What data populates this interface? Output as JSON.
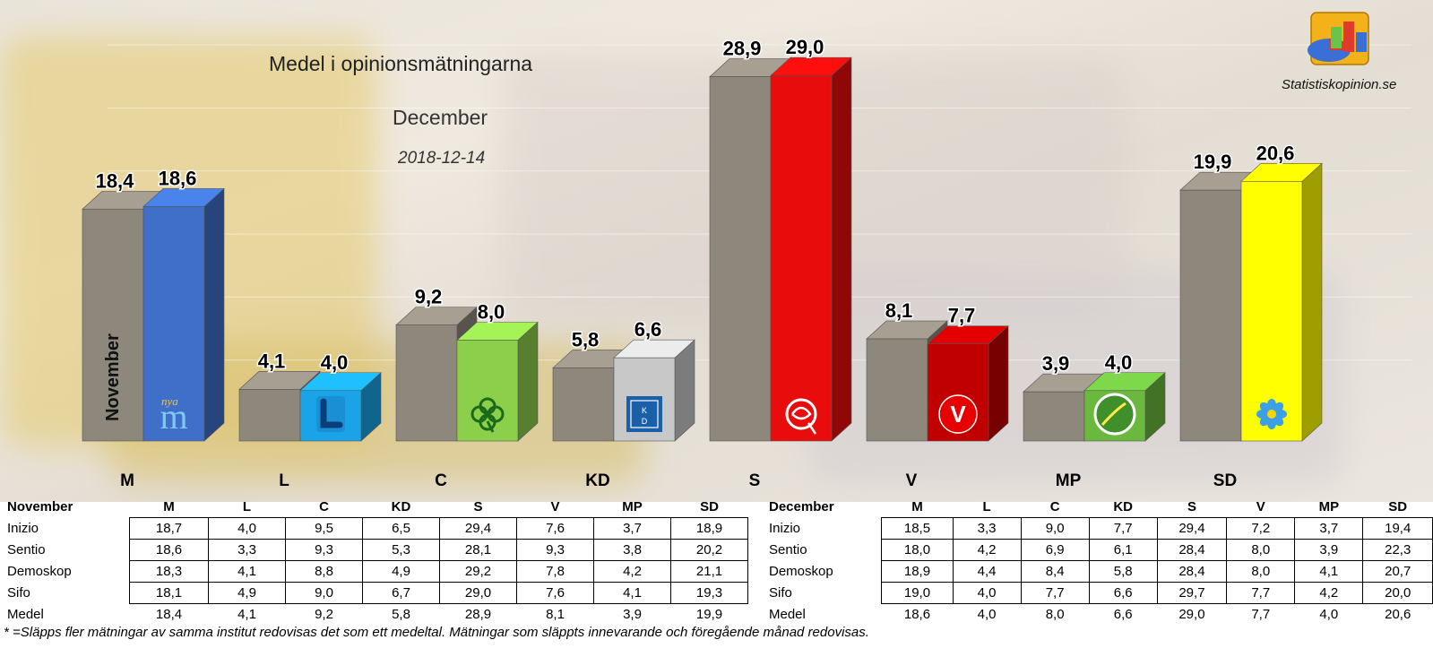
{
  "chart_data": {
    "type": "bar",
    "title": "Medel i opinionsmätningarna",
    "subtitle": "December",
    "date": "2018-12-14",
    "brand": "Statistiskopinion.se",
    "series_label": "November",
    "categories": [
      "M",
      "L",
      "C",
      "KD",
      "S",
      "V",
      "MP",
      "SD"
    ],
    "series": [
      {
        "name": "November",
        "values": [
          18.4,
          4.1,
          9.2,
          5.8,
          28.9,
          8.1,
          3.9,
          19.9
        ],
        "labels": [
          "18,4",
          "4,1",
          "9,2",
          "5,8",
          "28,9",
          "8,1",
          "3,9",
          "19,9"
        ]
      },
      {
        "name": "December",
        "values": [
          18.6,
          4.0,
          8.0,
          6.6,
          29.0,
          7.7,
          4.0,
          20.6
        ],
        "labels": [
          "18,6",
          "4,0",
          "8,0",
          "6,6",
          "29,0",
          "7,7",
          "4,0",
          "20,6"
        ]
      }
    ],
    "colors": {
      "november": "#8d877c",
      "parties": [
        "#3f6fc8",
        "#1aa3e6",
        "#8ccf4a",
        "#c8c8c8",
        "#e80c0c",
        "#c00000",
        "#6ab83e",
        "#ffff00"
      ]
    },
    "party_icons": [
      "moderaterna-logo-icon",
      "liberalerna-logo-icon",
      "centerpartiet-clover-icon",
      "kristdemokraterna-logo-icon",
      "socialdemokraterna-rose-icon",
      "vansterpartiet-logo-icon",
      "miljopartiet-dandelion-icon",
      "sverigedemokraterna-flower-icon"
    ],
    "moderaterna_logo_text": "nya",
    "kd_logo_text": [
      "K",
      "D"
    ],
    "v_logo_text": "V",
    "ylim": [
      0,
      32
    ],
    "grid": true,
    "legend": "none"
  },
  "tables": {
    "november": {
      "header": "November",
      "columns": [
        "M",
        "L",
        "C",
        "KD",
        "S",
        "V",
        "MP",
        "SD"
      ],
      "rows": [
        {
          "name": "Inizio",
          "values": [
            "18,7",
            "4,0",
            "9,5",
            "6,5",
            "29,4",
            "7,6",
            "3,7",
            "18,9"
          ]
        },
        {
          "name": "Sentio",
          "values": [
            "18,6",
            "3,3",
            "9,3",
            "5,3",
            "28,1",
            "9,3",
            "3,8",
            "20,2"
          ]
        },
        {
          "name": "Demoskop",
          "values": [
            "18,3",
            "4,1",
            "8,8",
            "4,9",
            "29,2",
            "7,8",
            "4,2",
            "21,1"
          ]
        },
        {
          "name": "Sifo",
          "values": [
            "18,1",
            "4,9",
            "9,0",
            "6,7",
            "29,0",
            "7,6",
            "4,1",
            "19,3"
          ]
        }
      ],
      "medel": {
        "name": "Medel",
        "values": [
          "18,4",
          "4,1",
          "9,2",
          "5,8",
          "28,9",
          "8,1",
          "3,9",
          "19,9"
        ]
      }
    },
    "december": {
      "header": "December",
      "columns": [
        "M",
        "L",
        "C",
        "KD",
        "S",
        "V",
        "MP",
        "SD"
      ],
      "rows": [
        {
          "name": "Inizio",
          "values": [
            "18,5",
            "3,3",
            "9,0",
            "7,7",
            "29,4",
            "7,2",
            "3,7",
            "19,4"
          ]
        },
        {
          "name": "Sentio",
          "values": [
            "18,0",
            "4,2",
            "6,9",
            "6,1",
            "28,4",
            "8,0",
            "3,9",
            "22,3"
          ]
        },
        {
          "name": "Demoskop",
          "values": [
            "18,9",
            "4,4",
            "8,4",
            "5,8",
            "28,4",
            "8,0",
            "4,1",
            "20,7"
          ]
        },
        {
          "name": "Sifo",
          "values": [
            "19,0",
            "4,0",
            "7,7",
            "6,6",
            "29,7",
            "7,7",
            "4,2",
            "20,0"
          ]
        }
      ],
      "medel": {
        "name": "Medel",
        "values": [
          "18,6",
          "4,0",
          "8,0",
          "6,6",
          "29,0",
          "7,7",
          "4,0",
          "20,6"
        ]
      }
    }
  },
  "footnote": "* =Släpps fler mätningar av samma institut redovisas det som ett medeltal. Mätningar som släppts innevarande och föregående månad redovisas."
}
